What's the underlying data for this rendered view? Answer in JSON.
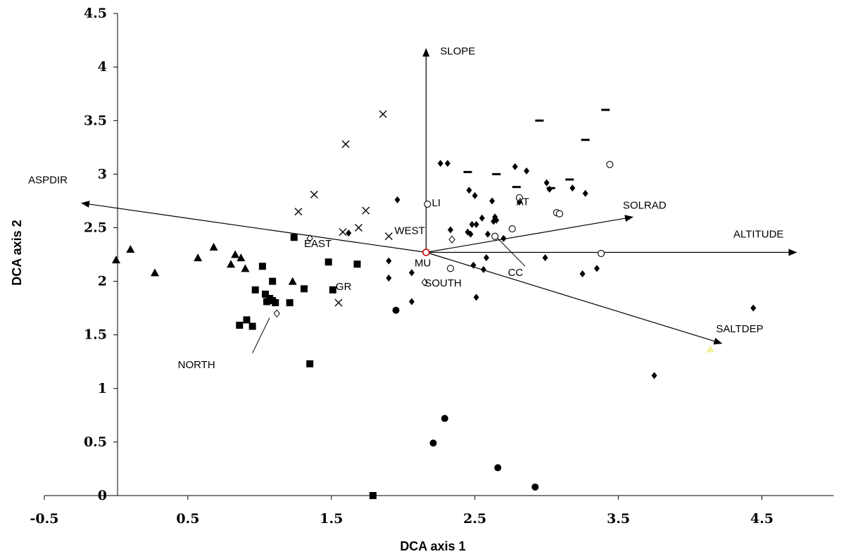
{
  "chart_data": {
    "type": "scatter",
    "xlabel": "DCA axis 1",
    "ylabel": "DCA axis 2",
    "xlim": [
      -0.5,
      5.0
    ],
    "ylim": [
      0,
      4.5
    ],
    "xticks": [
      -0.5,
      0.5,
      1.5,
      2.5,
      3.5,
      4.5
    ],
    "xtick_labels": [
      "-0.5",
      "0.5",
      "1.5",
      "2.5",
      "3.5",
      "4.5"
    ],
    "yticks": [
      0,
      0.5,
      1,
      1.5,
      2,
      2.5,
      3,
      3.5,
      4,
      4.5
    ],
    "ytick_labels": [
      "0",
      "0.5",
      "1",
      "1.5",
      "2",
      "2.5",
      "3",
      "3.5",
      "4",
      "4.5"
    ],
    "origin": {
      "x": 2.16,
      "y": 2.27
    },
    "vectors": [
      {
        "name": "SLOPE",
        "x": 2.16,
        "y": 4.17
      },
      {
        "name": "ASPDIR",
        "x": -0.24,
        "y": 2.73
      },
      {
        "name": "SOLRAD",
        "x": 3.6,
        "y": 2.6
      },
      {
        "name": "ALTITUDE",
        "x": 4.74,
        "y": 2.27
      },
      {
        "name": "SALTDEP",
        "x": 4.22,
        "y": 1.42
      }
    ],
    "centroid_labels": [
      {
        "text": "EAST",
        "x": 1.31,
        "y": 2.32
      },
      {
        "text": "WEST",
        "x": 1.94,
        "y": 2.44
      },
      {
        "text": "LI",
        "x": 2.2,
        "y": 2.7
      },
      {
        "text": "AT",
        "x": 2.79,
        "y": 2.71
      },
      {
        "text": "MU",
        "x": 2.08,
        "y": 2.14
      },
      {
        "text": "SOUTH",
        "x": 2.15,
        "y": 1.95
      },
      {
        "text": "GR",
        "x": 1.53,
        "y": 1.92
      },
      {
        "text": "CC",
        "x": 2.73,
        "y": 2.05
      },
      {
        "text": "NORTH",
        "x": 0.43,
        "y": 1.19
      }
    ],
    "leader_lines": [
      {
        "from": [
          2.66,
          2.4
        ],
        "to": [
          2.85,
          2.14
        ]
      },
      {
        "from": [
          1.07,
          1.66
        ],
        "to": [
          0.95,
          1.33
        ]
      }
    ],
    "series": [
      {
        "marker": "triangle",
        "points": [
          [
            0.0,
            2.2
          ],
          [
            0.1,
            2.3
          ],
          [
            0.27,
            2.08
          ],
          [
            0.57,
            2.22
          ],
          [
            0.68,
            2.32
          ],
          [
            0.8,
            2.16
          ],
          [
            0.83,
            2.25
          ],
          [
            0.87,
            2.22
          ],
          [
            0.9,
            2.12
          ],
          [
            1.23,
            2.0
          ]
        ]
      },
      {
        "marker": "square",
        "points": [
          [
            0.86,
            1.59
          ],
          [
            0.91,
            1.64
          ],
          [
            0.95,
            1.58
          ],
          [
            0.97,
            1.92
          ],
          [
            1.02,
            2.14
          ],
          [
            1.04,
            1.88
          ],
          [
            1.05,
            1.81
          ],
          [
            1.07,
            1.84
          ],
          [
            1.09,
            2.0
          ],
          [
            1.09,
            1.82
          ],
          [
            1.11,
            1.8
          ],
          [
            1.21,
            1.8
          ],
          [
            1.24,
            2.41
          ],
          [
            1.31,
            1.93
          ],
          [
            1.35,
            1.23
          ],
          [
            1.48,
            2.18
          ],
          [
            1.51,
            1.92
          ],
          [
            1.68,
            2.16
          ],
          [
            1.79,
            0.0
          ]
        ]
      },
      {
        "marker": "x",
        "points": [
          [
            1.27,
            2.65
          ],
          [
            1.38,
            2.81
          ],
          [
            1.55,
            1.8
          ],
          [
            1.58,
            2.46
          ],
          [
            1.6,
            3.28
          ],
          [
            1.69,
            2.5
          ],
          [
            1.74,
            2.66
          ],
          [
            1.86,
            3.56
          ],
          [
            1.9,
            2.42
          ]
        ]
      },
      {
        "marker": "diamond",
        "points": [
          [
            1.62,
            2.45
          ],
          [
            1.9,
            2.19
          ],
          [
            1.9,
            2.03
          ],
          [
            1.96,
            2.76
          ],
          [
            2.06,
            2.08
          ],
          [
            2.06,
            1.81
          ],
          [
            2.26,
            3.1
          ],
          [
            2.31,
            3.1
          ],
          [
            2.33,
            2.48
          ],
          [
            2.45,
            2.46
          ],
          [
            2.46,
            2.85
          ],
          [
            2.47,
            2.44
          ],
          [
            2.48,
            2.53
          ],
          [
            2.49,
            2.15
          ],
          [
            2.5,
            2.8
          ],
          [
            2.51,
            1.85
          ],
          [
            2.51,
            2.53
          ],
          [
            2.55,
            2.59
          ],
          [
            2.56,
            2.11
          ],
          [
            2.58,
            2.22
          ],
          [
            2.59,
            2.44
          ],
          [
            2.62,
            2.75
          ],
          [
            2.63,
            2.56
          ],
          [
            2.64,
            2.6
          ],
          [
            2.65,
            2.57
          ],
          [
            2.7,
            2.4
          ],
          [
            2.78,
            3.07
          ],
          [
            2.81,
            2.74
          ],
          [
            2.86,
            3.03
          ],
          [
            2.99,
            2.22
          ],
          [
            3.0,
            2.92
          ],
          [
            3.02,
            2.86
          ],
          [
            3.18,
            2.87
          ],
          [
            3.25,
            2.07
          ],
          [
            3.27,
            2.82
          ],
          [
            3.35,
            2.12
          ],
          [
            3.75,
            1.12
          ],
          [
            4.44,
            1.75
          ]
        ]
      },
      {
        "marker": "circle",
        "points": [
          [
            1.95,
            1.73
          ],
          [
            2.21,
            0.49
          ],
          [
            2.29,
            0.72
          ],
          [
            2.66,
            0.26
          ],
          [
            2.92,
            0.08
          ]
        ]
      },
      {
        "marker": "open-circle",
        "points": [
          [
            2.17,
            2.72
          ],
          [
            2.33,
            2.12
          ],
          [
            2.64,
            2.42
          ],
          [
            2.76,
            2.49
          ],
          [
            2.81,
            2.78
          ],
          [
            3.07,
            2.64
          ],
          [
            3.09,
            2.63
          ],
          [
            3.38,
            2.26
          ],
          [
            3.44,
            3.09
          ]
        ]
      },
      {
        "marker": "open-diamond",
        "points": [
          [
            1.35,
            2.4
          ],
          [
            1.12,
            1.7
          ],
          [
            2.34,
            2.39
          ],
          [
            2.15,
            1.99
          ]
        ]
      },
      {
        "marker": "dash",
        "points": [
          [
            2.45,
            3.02
          ],
          [
            2.65,
            3.0
          ],
          [
            2.79,
            2.88
          ],
          [
            2.95,
            3.5
          ],
          [
            3.03,
            2.87
          ],
          [
            3.16,
            2.95
          ],
          [
            3.27,
            3.32
          ],
          [
            3.41,
            3.6
          ]
        ]
      },
      {
        "marker": "yellow-triangle",
        "points": [
          [
            4.14,
            1.37
          ]
        ]
      },
      {
        "marker": "red-open-circle",
        "points": [
          [
            2.16,
            2.27
          ]
        ]
      }
    ],
    "grid": false,
    "legend": "none",
    "colors": {
      "marks": "#000000",
      "yellow_marker": "#f2f2a0",
      "red_marker": "#cc0000"
    }
  }
}
